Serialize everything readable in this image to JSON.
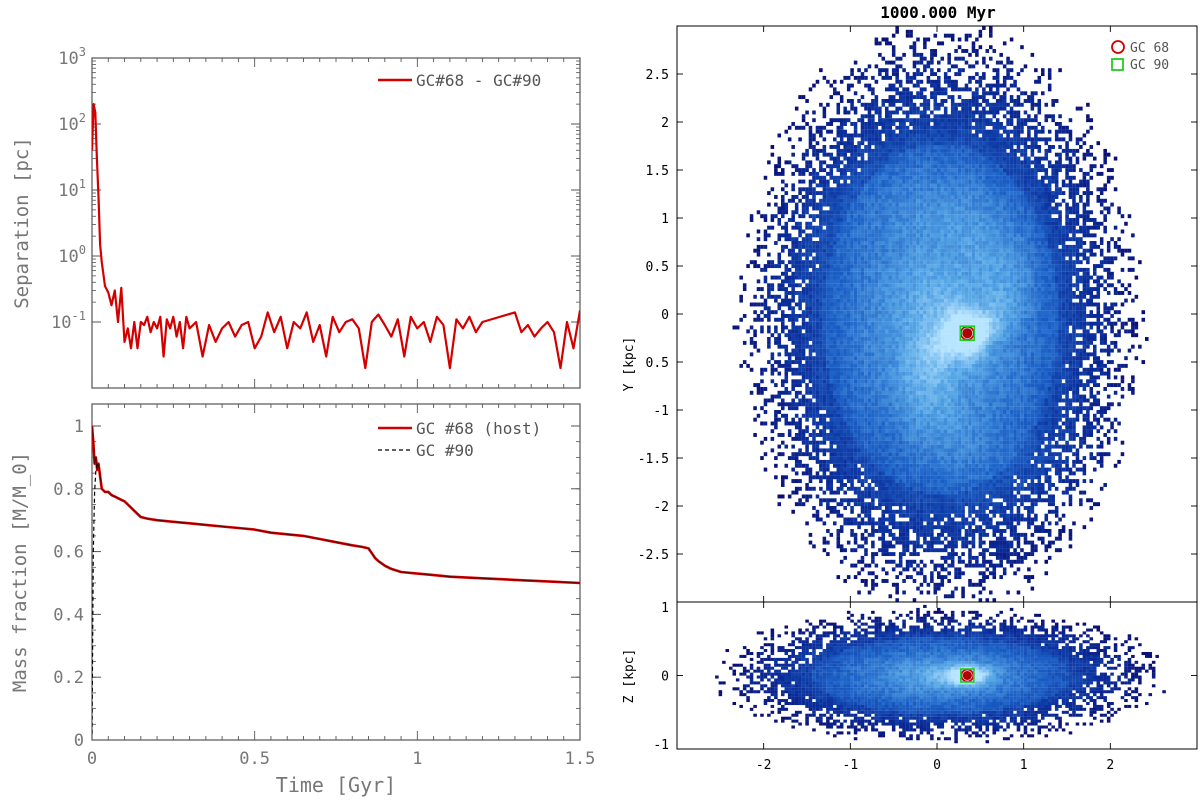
{
  "chart_data": [
    {
      "type": "line",
      "panel": "separation",
      "ylabel": "Separation [pc]",
      "yscale": "log",
      "ylim": [
        0.01,
        1000
      ],
      "xlim": [
        0,
        1.5
      ],
      "ytick_labels": [
        "10^-1",
        "10^0",
        "10^1",
        "10^2",
        "10^3"
      ],
      "legend": [
        "GC#68 - GC#90"
      ],
      "legend_loc": "top-right",
      "series": [
        {
          "name": "GC#68 - GC#90",
          "color": "#d40000",
          "x": [
            0,
            0.005,
            0.01,
            0.015,
            0.02,
            0.025,
            0.03,
            0.04,
            0.05,
            0.06,
            0.07,
            0.08,
            0.09,
            0.1,
            0.11,
            0.12,
            0.13,
            0.14,
            0.15,
            0.16,
            0.17,
            0.18,
            0.19,
            0.2,
            0.21,
            0.22,
            0.23,
            0.24,
            0.25,
            0.26,
            0.27,
            0.28,
            0.29,
            0.3,
            0.32,
            0.34,
            0.36,
            0.38,
            0.4,
            0.42,
            0.44,
            0.46,
            0.48,
            0.5,
            0.52,
            0.54,
            0.56,
            0.58,
            0.6,
            0.62,
            0.64,
            0.66,
            0.68,
            0.7,
            0.72,
            0.74,
            0.76,
            0.78,
            0.8,
            0.82,
            0.84,
            0.86,
            0.88,
            0.9,
            0.92,
            0.94,
            0.96,
            0.98,
            1.0,
            1.02,
            1.04,
            1.06,
            1.08,
            1.1,
            1.12,
            1.14,
            1.16,
            1.18,
            1.2,
            1.3,
            1.32,
            1.34,
            1.36,
            1.38,
            1.4,
            1.42,
            1.44,
            1.46,
            1.48,
            1.5
          ],
          "y": [
            40,
            200,
            150,
            30,
            8,
            1.5,
            0.8,
            0.35,
            0.28,
            0.18,
            0.3,
            0.1,
            0.33,
            0.05,
            0.08,
            0.04,
            0.1,
            0.04,
            0.1,
            0.09,
            0.12,
            0.07,
            0.1,
            0.08,
            0.12,
            0.03,
            0.11,
            0.08,
            0.12,
            0.06,
            0.1,
            0.04,
            0.12,
            0.08,
            0.1,
            0.03,
            0.09,
            0.05,
            0.08,
            0.1,
            0.06,
            0.09,
            0.1,
            0.04,
            0.06,
            0.14,
            0.07,
            0.12,
            0.04,
            0.1,
            0.08,
            0.14,
            0.05,
            0.09,
            0.03,
            0.12,
            0.07,
            0.1,
            0.11,
            0.08,
            0.02,
            0.1,
            0.13,
            0.09,
            0.06,
            0.11,
            0.03,
            0.12,
            0.08,
            0.1,
            0.05,
            0.12,
            0.09,
            0.02,
            0.11,
            0.08,
            0.12,
            0.07,
            0.1,
            0.14,
            0.07,
            0.09,
            0.06,
            0.08,
            0.1,
            0.07,
            0.02,
            0.1,
            0.04,
            0.15
          ]
        }
      ]
    },
    {
      "type": "line",
      "panel": "mass-fraction",
      "xlabel": "Time [Gyr]",
      "ylabel": "Mass fraction [M/M_0]",
      "xlim": [
        0,
        1.5
      ],
      "ylim": [
        0,
        1.07
      ],
      "xtick_labels": [
        "0",
        "0.5",
        "1",
        "1.5"
      ],
      "ytick_labels": [
        "0",
        "0.2",
        "0.4",
        "0.6",
        "0.8",
        "1"
      ],
      "legend": [
        "GC #68 (host)",
        "GC #90"
      ],
      "legend_loc": "top-right",
      "series": [
        {
          "name": "GC #68 (host)",
          "color": "#d40000",
          "x": [
            0,
            0.004,
            0.008,
            0.012,
            0.016,
            0.02,
            0.025,
            0.03,
            0.04,
            0.05,
            0.06,
            0.07,
            0.08,
            0.09,
            0.1,
            0.11,
            0.12,
            0.13,
            0.14,
            0.15,
            0.17,
            0.2,
            0.25,
            0.3,
            0.35,
            0.4,
            0.45,
            0.5,
            0.55,
            0.6,
            0.65,
            0.7,
            0.75,
            0.8,
            0.83,
            0.85,
            0.86,
            0.87,
            0.88,
            0.9,
            0.92,
            0.95,
            1.0,
            1.05,
            1.1,
            1.2,
            1.3,
            1.4,
            1.5
          ],
          "y": [
            1.0,
            0.95,
            0.88,
            0.9,
            0.86,
            0.88,
            0.84,
            0.8,
            0.79,
            0.79,
            0.78,
            0.775,
            0.77,
            0.765,
            0.76,
            0.75,
            0.74,
            0.73,
            0.72,
            0.71,
            0.705,
            0.7,
            0.695,
            0.69,
            0.685,
            0.68,
            0.675,
            0.67,
            0.66,
            0.655,
            0.65,
            0.64,
            0.63,
            0.62,
            0.615,
            0.61,
            0.595,
            0.58,
            0.57,
            0.555,
            0.545,
            0.535,
            0.53,
            0.525,
            0.52,
            0.515,
            0.51,
            0.505,
            0.5
          ]
        },
        {
          "name": "GC #90",
          "color": "#000000",
          "x": [
            0,
            0.004,
            0.008,
            0.012,
            0.016
          ],
          "y": [
            0.02,
            0.6,
            0.79,
            0.86,
            0.88
          ]
        }
      ]
    },
    {
      "type": "heatmap",
      "panel": "xy-density",
      "title": "1000.000 Myr",
      "ylabel": "Y [kpc]",
      "xlim": [
        -3,
        3
      ],
      "ylim": [
        -3,
        3
      ],
      "ytick_labels": [
        "2.5",
        "2",
        "1.5",
        "1",
        "0.5",
        "0",
        "0.5",
        "-1",
        "-1.5",
        "-2",
        "-2.5"
      ],
      "legend": [
        "GC 68",
        "GC 90"
      ],
      "legend_colors": [
        "#d40000",
        "#22cc22"
      ],
      "legend_loc": "top-right",
      "colormap": [
        "#0a0a6e",
        "#0b2f9c",
        "#1e63c8",
        "#56a6e6",
        "#b7e4ff"
      ],
      "markers": [
        {
          "name": "GC 68",
          "x": 0.35,
          "y": -0.2
        },
        {
          "name": "GC 90",
          "x": 0.35,
          "y": -0.2
        }
      ]
    },
    {
      "type": "heatmap",
      "panel": "xz-density",
      "xlabel": "",
      "ylabel": "Z [kpc]",
      "xlim": [
        -3,
        3
      ],
      "ylim": [
        -1,
        1
      ],
      "xtick_labels": [
        "-2",
        "-1",
        "0",
        "1",
        "2"
      ],
      "ytick_labels": [
        "1",
        "0",
        "-1"
      ],
      "markers": [
        {
          "name": "GC 68",
          "x": 0.35,
          "y": 0.0
        },
        {
          "name": "GC 90",
          "x": 0.35,
          "y": 0.0
        }
      ]
    }
  ]
}
